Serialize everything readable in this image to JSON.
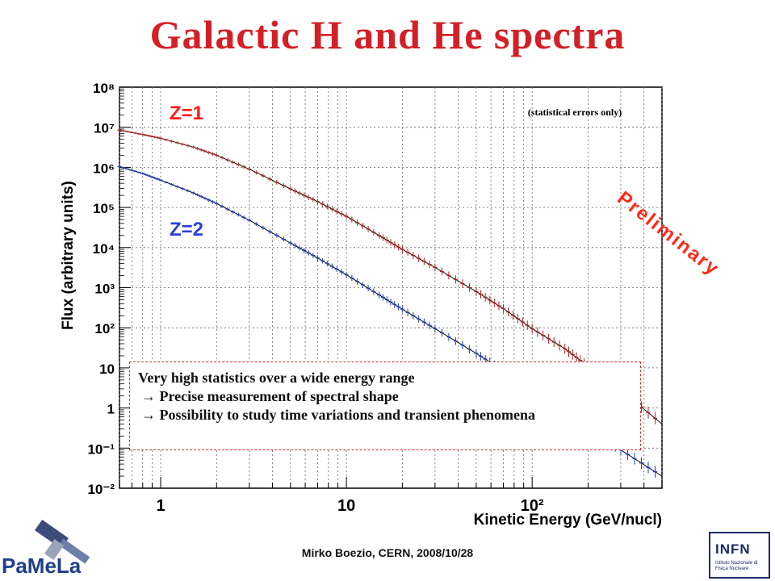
{
  "slide": {
    "title": "Galactic H and He spectra",
    "footer": "Mirko Boezio, CERN, 2008/10/28",
    "preliminary": "Preliminary",
    "notes": [
      "Very high statistics over a wide energy range",
      "→ Precise measurement of spectral shape",
      "→ Possibility to study time variations and transient phenomena"
    ],
    "logos": {
      "left": "PaMeLa",
      "right": "INFN",
      "right_sub": "Istituto Nazionale di Fisica Nucleare"
    }
  },
  "chart_data": {
    "type": "scatter",
    "xlabel": "Kinetic Energy (GeV/nucl)",
    "ylabel": "Flux (arbitrary units)",
    "x_scale": "log",
    "y_scale": "log",
    "xlim": [
      0.6,
      500
    ],
    "ylim": [
      0.01,
      100000000
    ],
    "x_ticklabels": [
      "1",
      "10",
      "10²"
    ],
    "y_ticklabels": [
      "10⁻²",
      "10⁻¹",
      "1",
      "10",
      "10²",
      "10³",
      "10⁴",
      "10⁵",
      "10⁶",
      "10⁷",
      "10⁸"
    ],
    "grid": true,
    "annotation": "(statistical errors only)",
    "colors": {
      "h": "#b22222",
      "he": "#1f3fbf",
      "fit": "#111111"
    },
    "series": [
      {
        "name": "Z=1",
        "x": [
          0.6,
          0.8,
          1,
          1.5,
          2,
          3,
          5,
          7,
          10,
          15,
          20,
          30,
          50,
          70,
          100,
          150,
          200,
          300,
          500
        ],
        "y": [
          8500000,
          6600000,
          5300000,
          3200000,
          2000000,
          900000,
          290000,
          140000,
          60000,
          20000,
          9000,
          3200,
          800,
          300,
          95,
          30,
          11,
          2.8,
          0.4
        ]
      },
      {
        "name": "Z=2",
        "x": [
          0.6,
          0.8,
          1,
          1.5,
          2,
          3,
          5,
          7,
          10,
          15,
          20,
          30,
          50,
          70,
          100,
          150,
          200,
          300,
          500
        ],
        "y": [
          1050000,
          700000,
          480000,
          230000,
          125000,
          48000,
          13000,
          5500,
          2100,
          660,
          290,
          95,
          23,
          8.5,
          3,
          0.9,
          0.35,
          0.09,
          0.02
        ]
      }
    ]
  }
}
